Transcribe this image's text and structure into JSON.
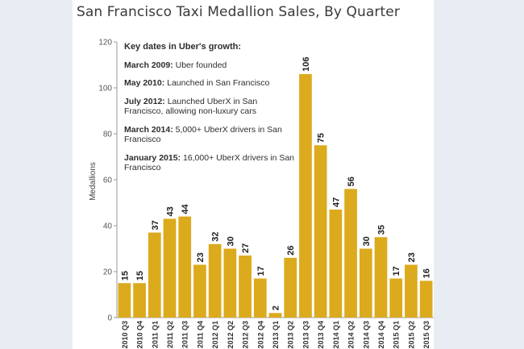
{
  "title": "San Francisco Taxi Medallion Sales, By Quarter",
  "annotations": {
    "heading": "Key dates in Uber's growth:",
    "items": [
      {
        "date": "March 2009:",
        "text": " Uber founded"
      },
      {
        "date": "May 2010:",
        "text": " Launched in San Francisco"
      },
      {
        "date": "July 2012:",
        "text": " Launched UberX in San Francisco, allowing non-luxury cars"
      },
      {
        "date": "March 2014:",
        "text": " 5,000+ UberX drivers in San Francisco"
      },
      {
        "date": "January 2015:",
        "text": " 16,000+ UberX drivers in San Francisco"
      }
    ]
  },
  "colors": {
    "bar": "#dcaa1d",
    "text": "#2e2e2e",
    "axis": "#999999",
    "background": "#e8edf4"
  },
  "chart_data": {
    "type": "bar",
    "title": "San Francisco Taxi Medallion Sales, By Quarter",
    "xlabel": "",
    "ylabel": "Medallions",
    "ylim": [
      0,
      120
    ],
    "yticks": [
      0,
      20,
      40,
      60,
      80,
      100,
      120
    ],
    "grid": false,
    "categories": [
      "2010 Q3",
      "2010 Q4",
      "2011 Q1",
      "2011 Q2",
      "2011 Q3",
      "2011 Q4",
      "2012 Q1",
      "2012 Q2",
      "2012 Q3",
      "2012 Q4",
      "2013 Q1",
      "2013 Q2",
      "2013 Q3",
      "2013 Q4",
      "2014 Q1",
      "2014 Q2",
      "2014 Q3",
      "2014 Q4",
      "2015 Q1",
      "2015 Q2",
      "2015 Q3"
    ],
    "values": [
      15,
      15,
      37,
      43,
      44,
      23,
      32,
      30,
      27,
      17,
      2,
      26,
      106,
      75,
      47,
      56,
      30,
      35,
      17,
      23,
      16
    ]
  }
}
